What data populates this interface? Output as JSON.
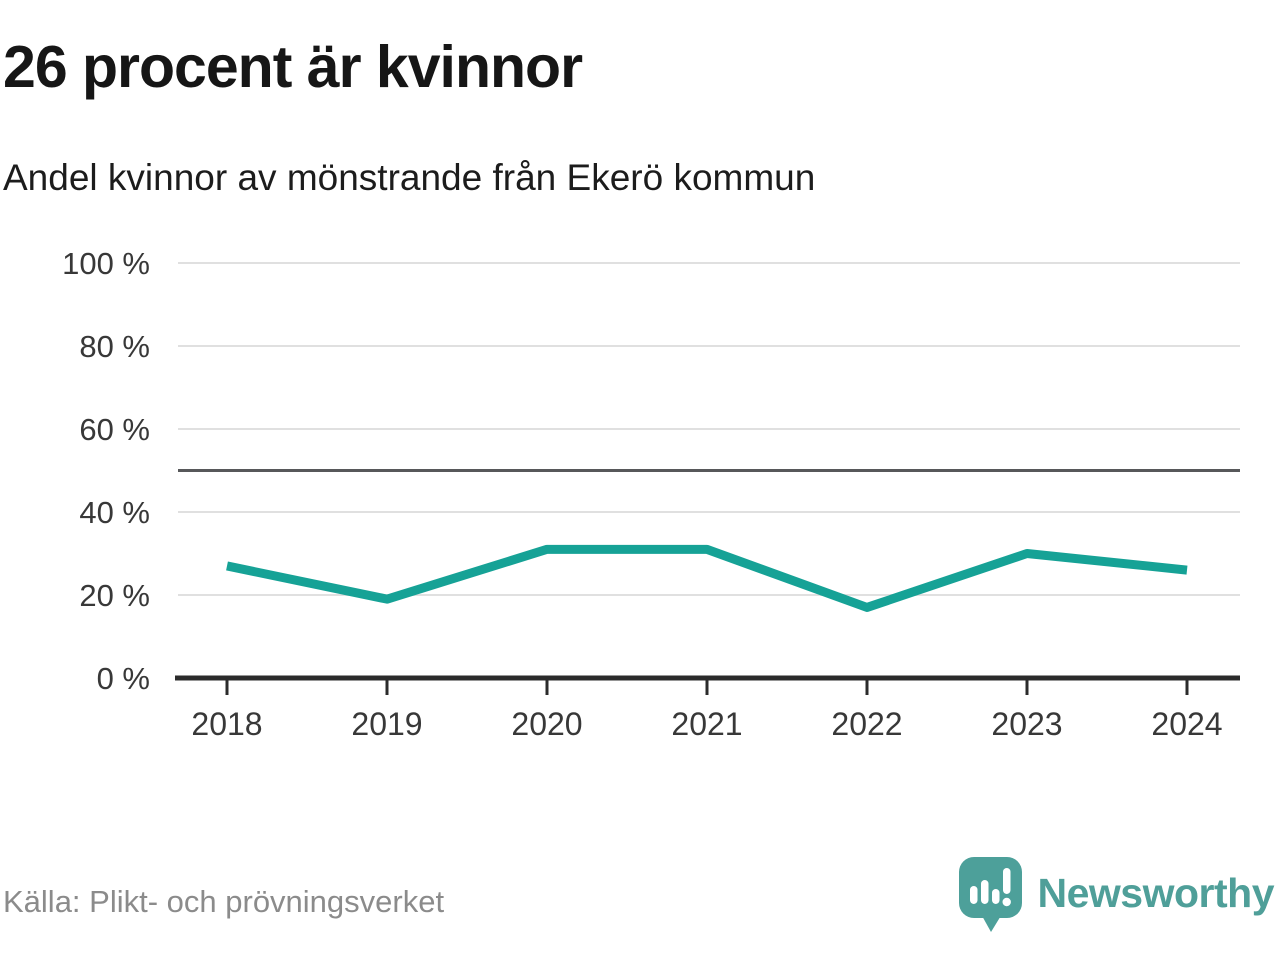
{
  "header": {
    "title": "26 procent är kvinnor",
    "subtitle": "Andel kvinnor av mönstrande från Ekerö kommun"
  },
  "chart_data": {
    "type": "line",
    "title": "26 procent är kvinnor",
    "subtitle": "Andel kvinnor av mönstrande från Ekerö kommun",
    "x": [
      "2018",
      "2019",
      "2020",
      "2021",
      "2022",
      "2023",
      "2024"
    ],
    "series": [
      {
        "name": "Andel kvinnor av mönstrande",
        "values": [
          27,
          19,
          31,
          31,
          17,
          30,
          26
        ]
      }
    ],
    "unit": "%",
    "ylim": [
      0,
      100
    ],
    "yticks": [
      {
        "value": 0,
        "label": "0 %"
      },
      {
        "value": 20,
        "label": "20 %"
      },
      {
        "value": 40,
        "label": "40 %"
      },
      {
        "value": 60,
        "label": "60 %"
      },
      {
        "value": 80,
        "label": "80 %"
      },
      {
        "value": 100,
        "label": "100 %"
      }
    ],
    "reference_line": 50,
    "grid": true,
    "legend": "none",
    "line_color": "#16a296"
  },
  "footer": {
    "source": "Källa: Plikt- och prövningsverket",
    "brand": "Newsworthy"
  },
  "colors": {
    "line": "#16a296",
    "grid": "#e0e0e0",
    "reference": "#57585a",
    "axis": "#2b2b2b",
    "axis_text": "#383838",
    "title_text": "#161616",
    "source_text": "#8b8b8b",
    "brand": "#4f9f99",
    "logo_bubble": "#4da09a"
  }
}
